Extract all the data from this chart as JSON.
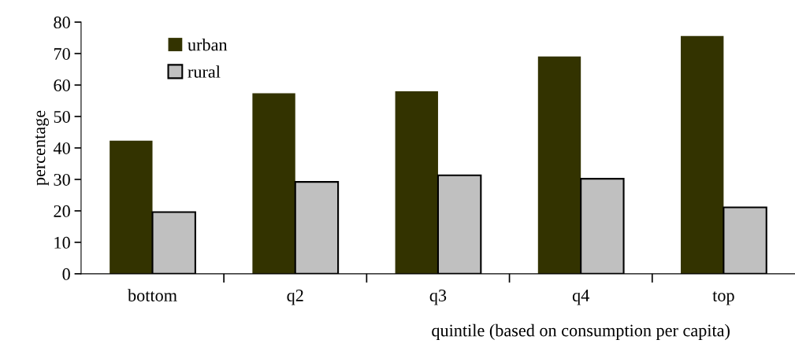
{
  "chart_data": {
    "type": "bar",
    "xlabel": "quintile (based on consumption per capita)",
    "ylabel": "percentage",
    "categories": [
      "bottom",
      "q2",
      "q3",
      "q4",
      "top"
    ],
    "series": [
      {
        "name": "urban",
        "color": "#333300",
        "values": [
          42.3,
          57.4,
          58.0,
          69.1,
          75.6
        ]
      },
      {
        "name": "rural",
        "color": "#c0c0c0",
        "values": [
          19.6,
          29.2,
          31.3,
          30.2,
          21.1
        ]
      }
    ],
    "ylim": [
      0,
      80
    ],
    "yticks": [
      0,
      10,
      20,
      30,
      40,
      50,
      60,
      70,
      80
    ],
    "grid": false,
    "legend": "top left"
  }
}
